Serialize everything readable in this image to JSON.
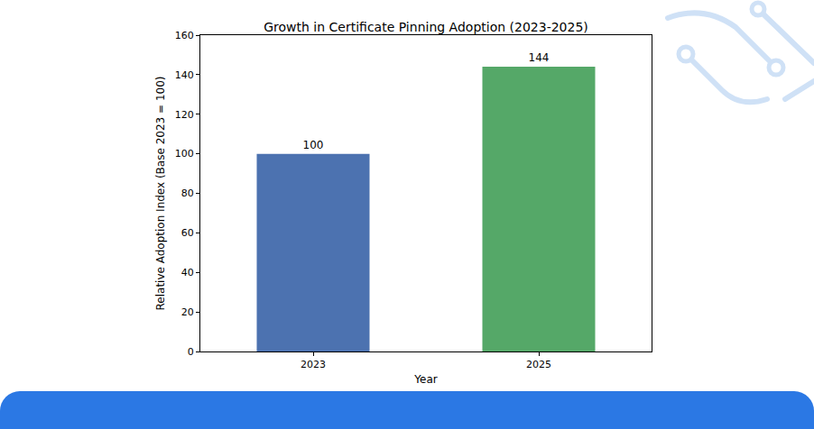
{
  "chart_data": {
    "type": "bar",
    "title": "Growth in Certificate Pinning Adoption (2023-2025)",
    "xlabel": "Year",
    "ylabel": "Relative Adoption Index (Base 2023 = 100)",
    "categories": [
      "2023",
      "2025"
    ],
    "values": [
      100,
      144
    ],
    "colors": [
      "#4c72b0",
      "#55a868"
    ],
    "ylim": [
      0,
      160
    ],
    "yticks": [
      0,
      20,
      40,
      60,
      80,
      100,
      120,
      140,
      160
    ],
    "grid": false,
    "data_labels": true
  }
}
